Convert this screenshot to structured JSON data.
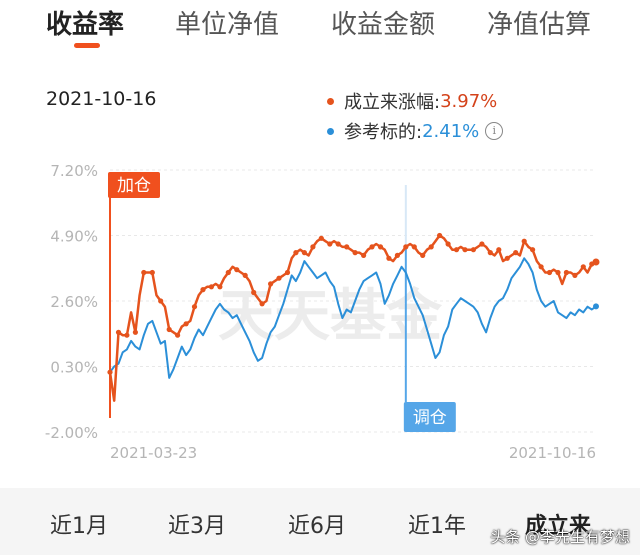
{
  "tabs": [
    {
      "label": "收益率",
      "active": true
    },
    {
      "label": "单位净值",
      "active": false
    },
    {
      "label": "收益金额",
      "active": false
    },
    {
      "label": "净值估算",
      "active": false
    }
  ],
  "date": "2021-10-16",
  "legend": {
    "series_a_label": "成立来涨幅:",
    "series_a_value": "3.97%",
    "series_b_label": "参考标的:",
    "series_b_value": "2.41%",
    "info_icon": "info-icon"
  },
  "colors": {
    "accent": "#f0501e",
    "series_a": "#e5531d",
    "series_b": "#2b8fd8",
    "add_marker": "#f0501e",
    "adjust_marker": "#55a6e8"
  },
  "watermark": "天天基金",
  "markers": {
    "add_label": "加仓",
    "adjust_label": "调仓"
  },
  "chart_data": {
    "type": "line",
    "title": "",
    "xlabel": "",
    "ylabel": "",
    "y_ticks": [
      "7.20%",
      "4.90%",
      "2.60%",
      "0.30%",
      "-2.00%"
    ],
    "ylim": [
      -2.0,
      7.2
    ],
    "x_ticks": [
      "2021-03-23",
      "2021-10-16"
    ],
    "grid": true,
    "add_position_index": 0,
    "adjust_position_index": 70,
    "series": [
      {
        "name": "成立来涨幅",
        "values": [
          0.1,
          -0.9,
          1.5,
          1.4,
          1.4,
          2.2,
          1.5,
          2.8,
          3.6,
          3.6,
          3.6,
          2.8,
          2.6,
          2.4,
          1.6,
          1.5,
          1.4,
          1.7,
          1.8,
          1.9,
          2.4,
          2.8,
          3.0,
          3.1,
          3.1,
          3.2,
          3.1,
          3.4,
          3.6,
          3.8,
          3.7,
          3.6,
          3.5,
          3.3,
          2.9,
          2.7,
          2.5,
          2.6,
          3.2,
          3.3,
          3.4,
          3.5,
          3.6,
          4.1,
          4.3,
          4.4,
          4.3,
          4.2,
          4.5,
          4.7,
          4.8,
          4.7,
          4.6,
          4.7,
          4.6,
          4.5,
          4.5,
          4.4,
          4.3,
          4.3,
          4.2,
          4.4,
          4.5,
          4.6,
          4.5,
          4.4,
          4.1,
          4.0,
          4.2,
          4.3,
          4.5,
          4.6,
          4.5,
          4.3,
          4.2,
          4.4,
          4.5,
          4.7,
          4.9,
          4.8,
          4.6,
          4.4,
          4.4,
          4.5,
          4.4,
          4.4,
          4.4,
          4.5,
          4.6,
          4.5,
          4.3,
          4.2,
          4.4,
          4.0,
          4.1,
          4.2,
          4.3,
          4.2,
          4.7,
          4.5,
          4.4,
          4.0,
          3.8,
          3.6,
          3.6,
          3.7,
          3.6,
          3.2,
          3.6,
          3.6,
          3.5,
          3.6,
          3.8,
          3.6,
          3.9,
          3.97
        ]
      },
      {
        "name": "参考标的",
        "values": [
          0.1,
          0.3,
          0.4,
          0.8,
          0.9,
          1.2,
          1.0,
          0.9,
          1.4,
          1.8,
          1.9,
          1.5,
          1.1,
          1.2,
          -0.1,
          0.2,
          0.6,
          1.0,
          0.7,
          0.9,
          1.3,
          1.6,
          1.4,
          1.7,
          2.0,
          2.3,
          2.5,
          2.3,
          2.2,
          2.0,
          2.1,
          1.8,
          1.5,
          1.2,
          0.8,
          0.5,
          0.6,
          1.1,
          1.5,
          1.7,
          2.1,
          2.5,
          3.0,
          3.5,
          3.3,
          3.6,
          4.0,
          3.8,
          3.6,
          3.4,
          3.5,
          3.6,
          3.3,
          3.1,
          2.5,
          2.0,
          2.3,
          2.2,
          2.6,
          3.0,
          3.3,
          3.4,
          3.5,
          3.6,
          3.2,
          2.5,
          2.8,
          3.2,
          3.5,
          3.8,
          3.6,
          3.2,
          2.7,
          2.4,
          2.1,
          1.6,
          1.1,
          0.6,
          0.8,
          1.4,
          1.7,
          2.3,
          2.5,
          2.7,
          2.6,
          2.5,
          2.4,
          2.2,
          1.8,
          1.5,
          2.0,
          2.4,
          2.6,
          2.7,
          3.0,
          3.4,
          3.6,
          3.8,
          4.1,
          3.9,
          3.6,
          3.0,
          2.6,
          2.4,
          2.5,
          2.6,
          2.2,
          2.1,
          2.0,
          2.2,
          2.1,
          2.3,
          2.2,
          2.4,
          2.3,
          2.41
        ]
      }
    ]
  },
  "periods": [
    {
      "label": "近1月",
      "active": false
    },
    {
      "label": "近3月",
      "active": false
    },
    {
      "label": "近6月",
      "active": false
    },
    {
      "label": "近1年",
      "active": false
    },
    {
      "label": "成立来",
      "active": true
    }
  ],
  "footer_watermark": "头条 @李先生有梦想"
}
